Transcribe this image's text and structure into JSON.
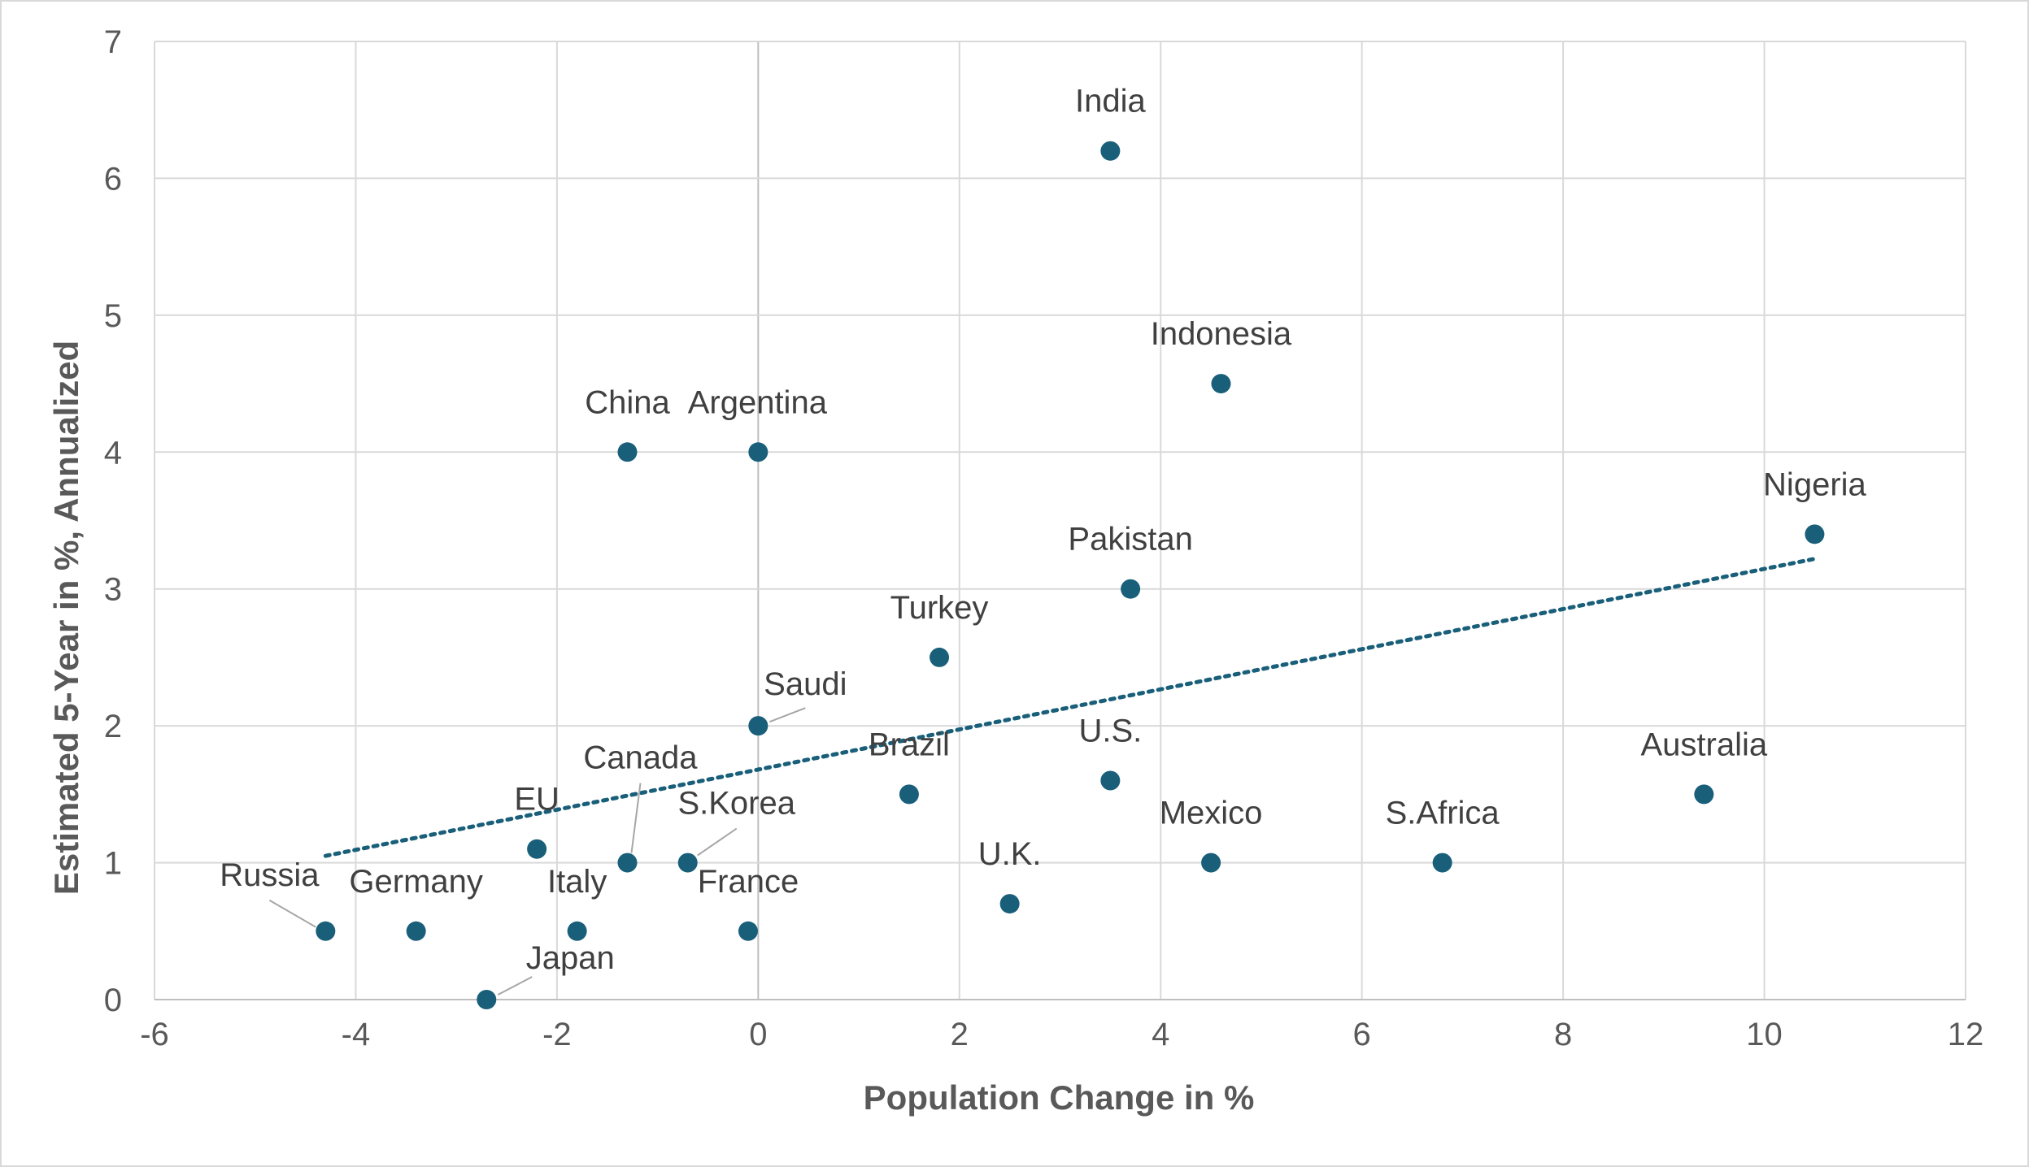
{
  "chart_data": {
    "type": "scatter",
    "title": "",
    "xlabel": "Population Change in %",
    "ylabel": "Estimated 5-Year in %, Annualized",
    "xlim": [
      -6,
      12
    ],
    "ylim": [
      0,
      7
    ],
    "xticks": [
      -6,
      -4,
      -2,
      0,
      2,
      4,
      6,
      8,
      10,
      12
    ],
    "yticks": [
      0,
      1,
      2,
      3,
      4,
      5,
      6,
      7
    ],
    "grid": true,
    "legend": "none",
    "marker_color": "#1a5f7a",
    "trendline": {
      "style": "dotted",
      "color": "#1a5f7a",
      "x": [
        -4.3,
        10.5
      ],
      "y": [
        1.05,
        3.22
      ]
    },
    "points": [
      {
        "label": "India",
        "x": 3.5,
        "y": 6.2
      },
      {
        "label": "Indonesia",
        "x": 4.6,
        "y": 4.5
      },
      {
        "label": "China",
        "x": -1.3,
        "y": 4.0
      },
      {
        "label": "Argentina",
        "x": 0.0,
        "y": 4.0
      },
      {
        "label": "Nigeria",
        "x": 10.5,
        "y": 3.4
      },
      {
        "label": "Pakistan",
        "x": 3.7,
        "y": 3.0
      },
      {
        "label": "Turkey",
        "x": 1.8,
        "y": 2.5
      },
      {
        "label": "Saudi",
        "x": 0.0,
        "y": 2.0
      },
      {
        "label": "U.S.",
        "x": 3.5,
        "y": 1.6
      },
      {
        "label": "Brazil",
        "x": 1.5,
        "y": 1.5
      },
      {
        "label": "Australia",
        "x": 9.4,
        "y": 1.5
      },
      {
        "label": "EU",
        "x": -2.2,
        "y": 1.1
      },
      {
        "label": "Canada",
        "x": -1.3,
        "y": 1.0
      },
      {
        "label": "S.Korea",
        "x": -0.7,
        "y": 1.0
      },
      {
        "label": "Mexico",
        "x": 4.5,
        "y": 1.0
      },
      {
        "label": "S.Africa",
        "x": 6.8,
        "y": 1.0
      },
      {
        "label": "U.K.",
        "x": 2.5,
        "y": 0.7
      },
      {
        "label": "Russia",
        "x": -4.3,
        "y": 0.5
      },
      {
        "label": "Germany",
        "x": -3.4,
        "y": 0.5
      },
      {
        "label": "Italy",
        "x": -1.8,
        "y": 0.5
      },
      {
        "label": "France",
        "x": -0.1,
        "y": 0.5
      },
      {
        "label": "Japan",
        "x": -2.7,
        "y": 0.0
      }
    ]
  }
}
